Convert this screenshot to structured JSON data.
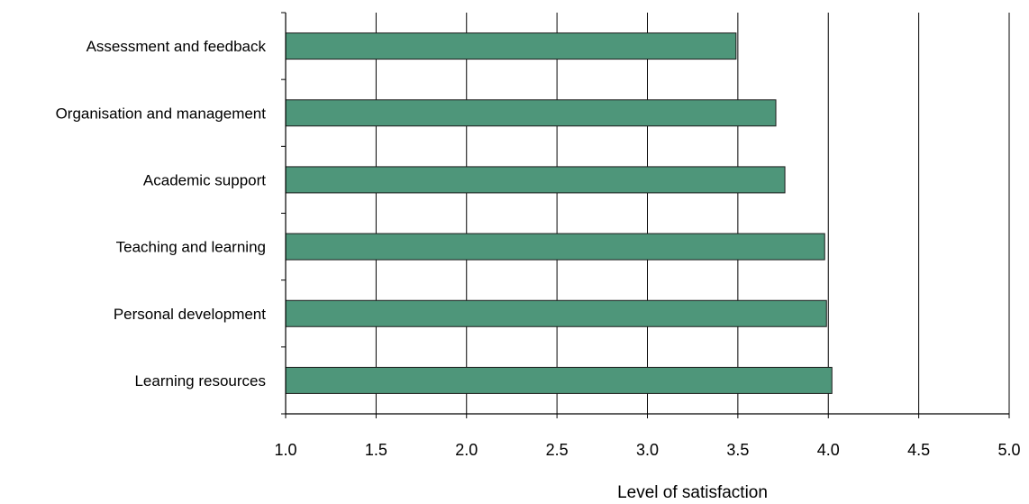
{
  "chart_data": {
    "type": "bar",
    "orientation": "horizontal",
    "categories": [
      "Assessment and feedback",
      "Organisation and management",
      "Academic support",
      "Teaching and learning",
      "Personal development",
      "Learning resources"
    ],
    "values": [
      3.49,
      3.71,
      3.76,
      3.98,
      3.99,
      4.02
    ],
    "xlabel": "Level of satisfaction",
    "ylabel": "",
    "title": "",
    "xlim": [
      1.0,
      5.0
    ],
    "x_ticks": [
      1.0,
      1.5,
      2.0,
      2.5,
      3.0,
      3.5,
      4.0,
      4.5,
      5.0
    ],
    "x_tick_labels": [
      "1.0",
      "1.5",
      "2.0",
      "2.5",
      "3.0",
      "3.5",
      "4.0",
      "4.5",
      "5.0"
    ],
    "grid": "vertical",
    "legend": "none",
    "colors": {
      "bar_fill": "#4e967a",
      "bar_stroke": "#1a1a1a",
      "axis": "#000000",
      "grid": "#000000"
    }
  }
}
